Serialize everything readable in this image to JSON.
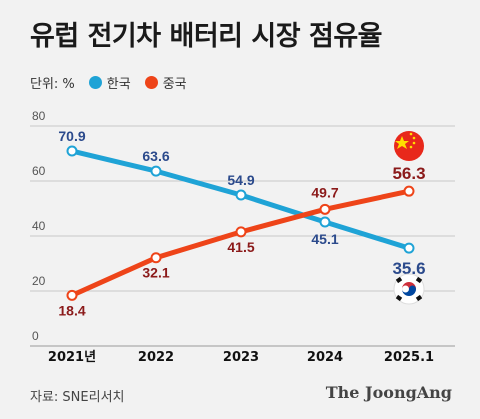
{
  "title": "유럽 전기차 배터리 시장 점유율",
  "unit_label": "단위: %",
  "source": "자료: SNE리서치",
  "brand": "The JoongAng",
  "colors": {
    "korea": "#1fa3d6",
    "china": "#ee4419",
    "korea_label": "#2b4a8c",
    "china_label": "#8b1a1a"
  },
  "chart_data": {
    "type": "line",
    "categories": [
      "2021년",
      "2022",
      "2023",
      "2024",
      "2025.1"
    ],
    "yticks": [
      0,
      20,
      40,
      60,
      80
    ],
    "ylim": [
      0,
      80
    ],
    "series": [
      {
        "name": "한국",
        "values": [
          70.9,
          63.6,
          54.9,
          45.1,
          35.6
        ]
      },
      {
        "name": "중국",
        "values": [
          18.4,
          32.1,
          41.5,
          49.7,
          56.3
        ]
      }
    ],
    "grid": true,
    "legend": "top-left"
  }
}
